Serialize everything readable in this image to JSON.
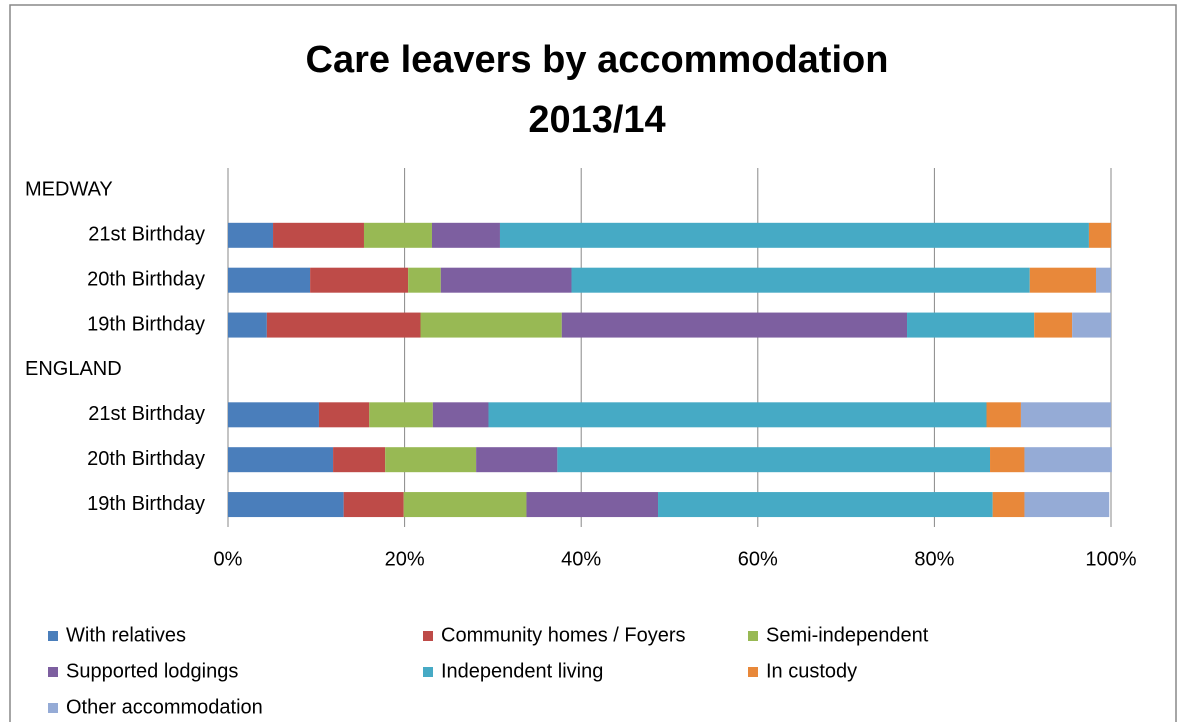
{
  "chart_data": {
    "type": "stacked_bar_horizontal",
    "title_lines": [
      "Care leavers by accommodation",
      "2013/14"
    ],
    "categories": [
      "MEDWAY",
      "21st Birthday",
      "20th Birthday",
      "19th Birthday",
      "ENGLAND",
      "21st Birthday",
      "20th Birthday",
      "19th Birthday"
    ],
    "series": [
      {
        "name": "With relatives",
        "color": "#4a7ebb",
        "values": [
          null,
          5.1,
          9.3,
          4.4,
          null,
          10.3,
          11.9,
          13.1
        ]
      },
      {
        "name": "Community homes / Foyers",
        "color": "#be4b48",
        "values": [
          null,
          10.3,
          11.1,
          17.4,
          null,
          5.7,
          5.9,
          6.8
        ]
      },
      {
        "name": "Semi-independent",
        "color": "#98b954",
        "values": [
          null,
          7.7,
          3.7,
          16.0,
          null,
          7.2,
          10.3,
          13.9
        ]
      },
      {
        "name": "Supported lodgings",
        "color": "#7d5fa0",
        "values": [
          null,
          7.7,
          14.8,
          39.1,
          null,
          6.3,
          9.2,
          14.9
        ]
      },
      {
        "name": "Independent living",
        "color": "#46aac5",
        "values": [
          null,
          66.7,
          51.9,
          14.4,
          null,
          56.4,
          49.0,
          37.9
        ]
      },
      {
        "name": "In custody",
        "color": "#e8883a",
        "values": [
          null,
          2.5,
          7.5,
          4.3,
          null,
          3.9,
          3.9,
          3.6
        ]
      },
      {
        "name": "Other accommodation",
        "color": "#95abd6",
        "values": [
          null,
          0,
          1.7,
          4.4,
          null,
          10.2,
          9.9,
          9.6
        ]
      }
    ],
    "xlim": [
      0,
      100
    ],
    "xticks": [
      {
        "value": 0,
        "label": "0%"
      },
      {
        "value": 20,
        "label": "20%"
      },
      {
        "value": 40,
        "label": "40%"
      },
      {
        "value": 60,
        "label": "60%"
      },
      {
        "value": 80,
        "label": "80%"
      },
      {
        "value": 100,
        "label": "100%"
      }
    ],
    "grid": true,
    "legend": "bottom"
  }
}
